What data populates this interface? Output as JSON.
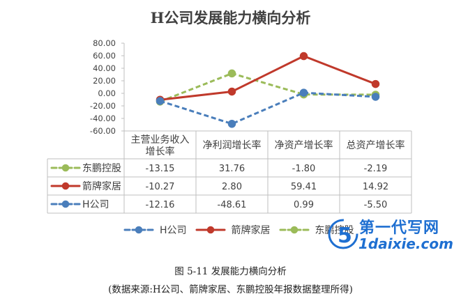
{
  "chart_data": {
    "type": "line",
    "title": "H公司发展能力横向分析",
    "categories": [
      "主营业务收入增长率",
      "净利润增长率",
      "净资产增长率",
      "总资产增长率"
    ],
    "category_lines": [
      [
        "主营业务收入",
        "增长率"
      ],
      [
        "净利润增长率"
      ],
      [
        "净资产增长率"
      ],
      [
        "总资产增长率"
      ]
    ],
    "ylim": [
      -60,
      80
    ],
    "yticks": [
      "80.00",
      "60.00",
      "40.00",
      "20.00",
      "0.00",
      "-20.00",
      "-40.00",
      "-60.00"
    ],
    "series": [
      {
        "name": "东鹏控股",
        "values": [
          "-13.15",
          "31.76",
          "-1.80",
          "-2.19"
        ],
        "color": "#9bbb59",
        "style": "dashed-green"
      },
      {
        "name": "箭牌家居",
        "values": [
          "-10.27",
          "2.80",
          "59.41",
          "14.92"
        ],
        "color": "#c0392b",
        "style": "solid-red"
      },
      {
        "name": "H公司",
        "values": [
          "-12.16",
          "-48.61",
          "0.99",
          "-5.50"
        ],
        "color": "#4a7ebb",
        "style": "dashed-blue"
      }
    ],
    "legend": {
      "position": "bottom",
      "order": [
        "H公司",
        "箭牌家居",
        "东鹏控股"
      ]
    },
    "grid": false,
    "data_table": true
  },
  "caption": "图 5-11 发展能力横向分析",
  "source_note": "(数据来源:H公司、箭牌家居、东鹏控股年报数据整理所得)",
  "watermark": {
    "site": "第一代写网",
    "url": "1daixie.com",
    "logo_digit": "5"
  }
}
